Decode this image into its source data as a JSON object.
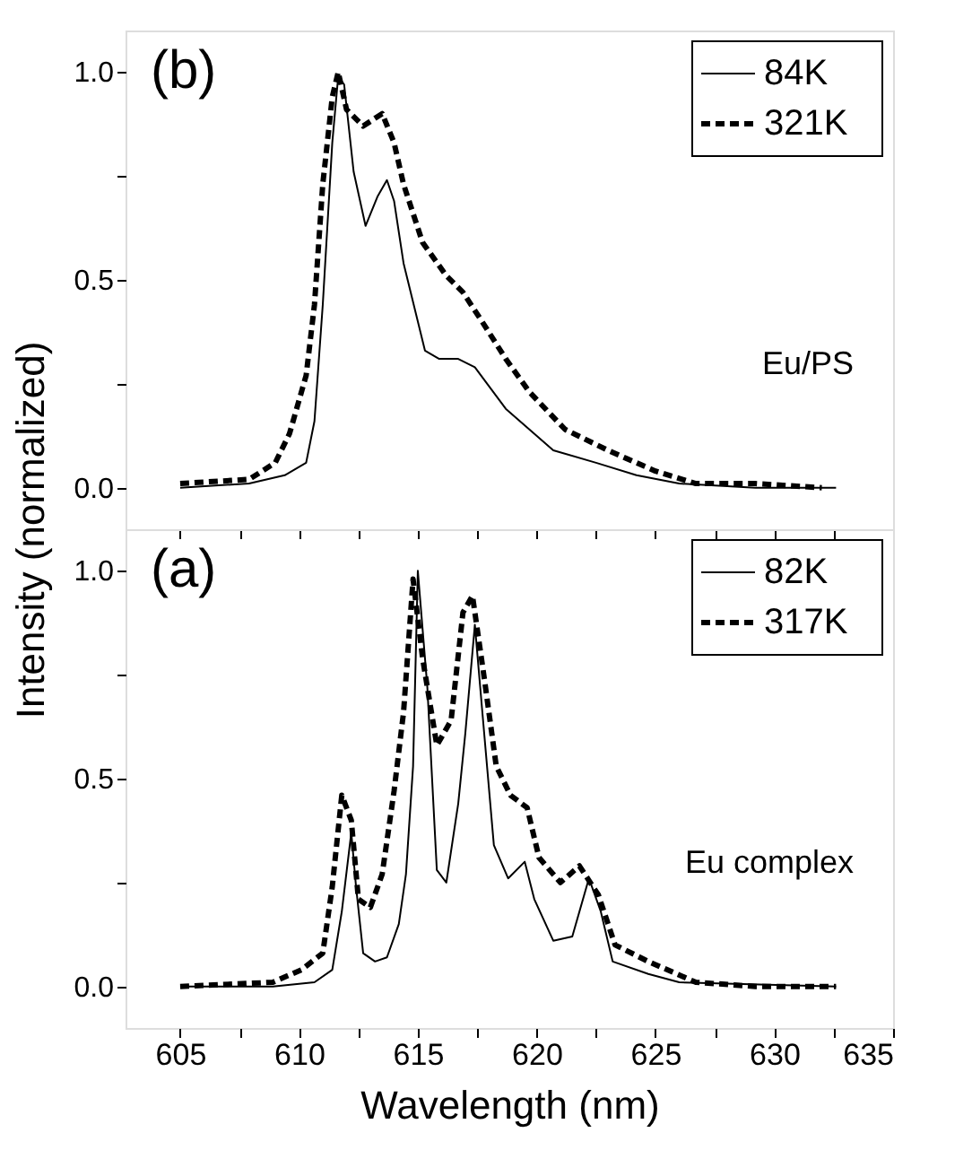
{
  "chart_data": [
    {
      "type": "line",
      "title": "(b)",
      "ylabel": "Intensity (normalized)",
      "annotations": [
        "Eu/PS"
      ],
      "xlim": [
        602.7,
        635
      ],
      "ylim": [
        -0.1,
        1.1
      ],
      "xticks": [
        605,
        {
          "value": 607.5,
          "label": null
        },
        610,
        {
          "value": 612.5,
          "label": null
        },
        615,
        {
          "value": 617.5,
          "label": null
        },
        620,
        {
          "value": 622.5,
          "label": null
        },
        625,
        {
          "value": 627.5,
          "label": null
        },
        630,
        {
          "value": 632.5,
          "label": null
        },
        635
      ],
      "yticks": [
        {
          "value": 0,
          "label": "0.0"
        },
        {
          "value": 0.25,
          "label": null
        },
        {
          "value": 0.5,
          "label": "0.5"
        },
        {
          "value": 0.75,
          "label": null
        },
        {
          "value": 1,
          "label": "1.0"
        }
      ],
      "tick_labels": "y",
      "legend": "top right",
      "grid": false,
      "series": [
        {
          "name": "84K",
          "color": "#000000",
          "line_style": "solid",
          "x": [
            605.0,
            607.9,
            609.4,
            610.3,
            610.65,
            611.0,
            611.4,
            611.65,
            611.9,
            612.3,
            612.8,
            613.3,
            613.7,
            614.0,
            614.4,
            615.3,
            615.9,
            616.7,
            617.4,
            618.7,
            620.7,
            622.5,
            624.2,
            626.0,
            629.2,
            632.6
          ],
          "values": [
            0.0,
            0.01,
            0.03,
            0.06,
            0.16,
            0.44,
            0.83,
            0.99,
            0.97,
            0.76,
            0.63,
            0.7,
            0.74,
            0.69,
            0.54,
            0.33,
            0.31,
            0.31,
            0.29,
            0.19,
            0.09,
            0.06,
            0.03,
            0.01,
            0.0,
            0.0
          ]
        },
        {
          "name": "321K",
          "color": "#000000",
          "line_style": "dashed",
          "x": [
            605.0,
            607.9,
            609.0,
            609.6,
            610.3,
            610.65,
            611.0,
            611.4,
            611.65,
            612.0,
            612.7,
            613.5,
            614.0,
            614.4,
            615.2,
            616.2,
            616.9,
            617.7,
            618.7,
            619.7,
            621.2,
            623.0,
            625.0,
            626.7,
            629.2,
            632.0
          ],
          "values": [
            0.01,
            0.02,
            0.06,
            0.13,
            0.27,
            0.44,
            0.73,
            0.94,
            1.0,
            0.91,
            0.87,
            0.9,
            0.83,
            0.73,
            0.59,
            0.51,
            0.47,
            0.4,
            0.31,
            0.23,
            0.14,
            0.09,
            0.04,
            0.01,
            0.01,
            0.0
          ]
        }
      ]
    },
    {
      "type": "line",
      "title": "(a)",
      "xlabel": "Wavelength (nm)",
      "annotations": [
        "Eu complex"
      ],
      "xlim": [
        602.7,
        635
      ],
      "ylim": [
        -0.1,
        1.1
      ],
      "xticks": [
        605,
        {
          "value": 607.5,
          "label": null
        },
        610,
        {
          "value": 612.5,
          "label": null
        },
        615,
        {
          "value": 617.5,
          "label": null
        },
        620,
        {
          "value": 622.5,
          "label": null
        },
        625,
        {
          "value": 627.5,
          "label": null
        },
        630,
        {
          "value": 632.5,
          "label": null
        },
        635
      ],
      "yticks": [
        {
          "value": 0,
          "label": "0.0"
        },
        {
          "value": 0.25,
          "label": null
        },
        {
          "value": 0.5,
          "label": "0.5"
        },
        {
          "value": 0.75,
          "label": null
        },
        {
          "value": 1,
          "label": "1.0"
        }
      ],
      "legend": "top right",
      "grid": false,
      "series": [
        {
          "name": "82K",
          "color": "#000000",
          "line_style": "solid",
          "x": [
            605.0,
            608.9,
            610.65,
            611.4,
            611.8,
            612.2,
            612.4,
            612.7,
            613.2,
            613.7,
            614.2,
            614.5,
            614.8,
            615.0,
            615.4,
            615.8,
            616.2,
            616.7,
            617.0,
            617.4,
            617.7,
            618.2,
            618.8,
            619.5,
            619.9,
            620.7,
            621.5,
            622.2,
            622.7,
            623.2,
            624.7,
            626.0,
            632.6
          ],
          "values": [
            0.0,
            0.0,
            0.01,
            0.04,
            0.18,
            0.37,
            0.24,
            0.08,
            0.06,
            0.07,
            0.15,
            0.27,
            0.53,
            1.0,
            0.72,
            0.28,
            0.25,
            0.44,
            0.61,
            0.87,
            0.67,
            0.34,
            0.26,
            0.3,
            0.21,
            0.11,
            0.12,
            0.26,
            0.18,
            0.06,
            0.03,
            0.01,
            0.0
          ]
        },
        {
          "name": "317K",
          "color": "#000000",
          "line_style": "dashed",
          "x": [
            605.0,
            608.9,
            610.1,
            611.0,
            611.4,
            611.8,
            612.2,
            612.5,
            613.0,
            613.5,
            614.0,
            614.4,
            614.8,
            615.2,
            615.8,
            616.4,
            616.9,
            617.3,
            617.8,
            618.3,
            618.9,
            619.6,
            620.1,
            621.0,
            621.8,
            622.6,
            623.3,
            624.7,
            626.7,
            629.2,
            632.6
          ],
          "values": [
            0.0,
            0.01,
            0.04,
            0.08,
            0.24,
            0.46,
            0.4,
            0.21,
            0.19,
            0.27,
            0.47,
            0.66,
            0.98,
            0.79,
            0.58,
            0.64,
            0.9,
            0.94,
            0.74,
            0.53,
            0.46,
            0.43,
            0.31,
            0.25,
            0.29,
            0.22,
            0.1,
            0.06,
            0.01,
            0.0,
            0.0
          ]
        }
      ]
    }
  ]
}
